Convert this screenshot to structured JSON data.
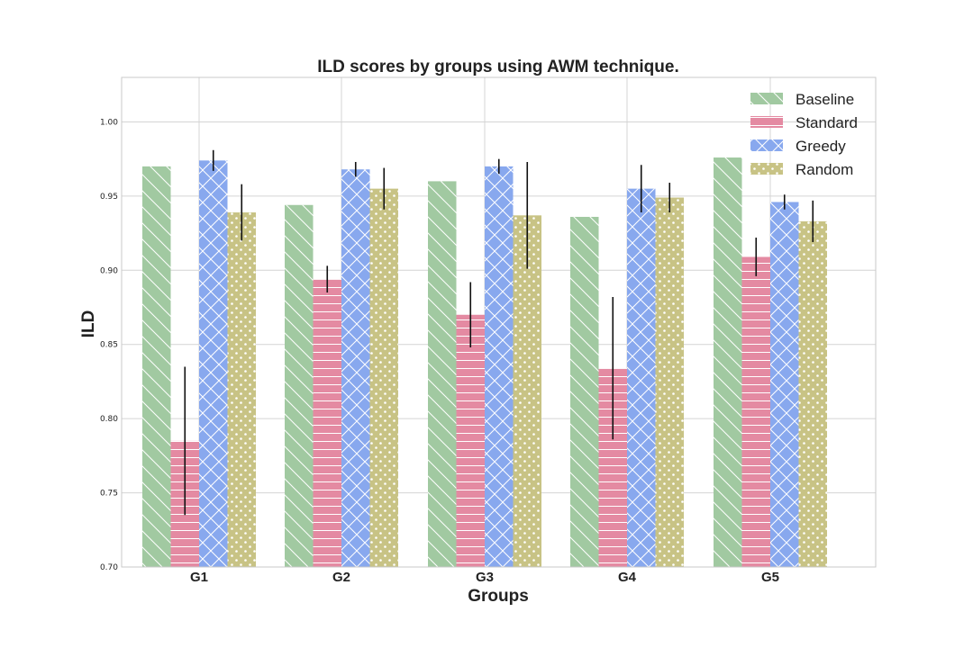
{
  "chart_data": {
    "type": "bar",
    "title": "ILD scores by groups using AWM technique.",
    "xlabel": "Groups",
    "ylabel": "ILD",
    "categories": [
      "G1",
      "G2",
      "G3",
      "G4",
      "G5"
    ],
    "ylim": [
      0.7,
      1.03
    ],
    "yticks": [
      "0.70",
      "0.75",
      "0.80",
      "0.85",
      "0.90",
      "0.95",
      "1.00"
    ],
    "grid": true,
    "legend_position": "top-right",
    "series": [
      {
        "name": "Baseline",
        "color": "#a1c9a1",
        "hatch": "diagonal",
        "values": [
          0.97,
          0.944,
          0.96,
          0.936,
          0.976
        ],
        "errors": [
          0,
          0,
          0,
          0,
          0
        ]
      },
      {
        "name": "Standard",
        "color": "#e48aa2",
        "hatch": "horizontal",
        "values": [
          0.785,
          0.894,
          0.87,
          0.834,
          0.909
        ],
        "errors": [
          0.05,
          0.009,
          0.022,
          0.048,
          0.013
        ]
      },
      {
        "name": "Greedy",
        "color": "#88a8ee",
        "hatch": "cross",
        "values": [
          0.974,
          0.968,
          0.97,
          0.955,
          0.946
        ],
        "errors": [
          0.007,
          0.005,
          0.005,
          0.016,
          0.005
        ]
      },
      {
        "name": "Random",
        "color": "#c8c385",
        "hatch": "dots",
        "values": [
          0.939,
          0.955,
          0.937,
          0.949,
          0.933
        ],
        "errors": [
          0.019,
          0.014,
          0.036,
          0.01,
          0.014
        ]
      }
    ]
  }
}
